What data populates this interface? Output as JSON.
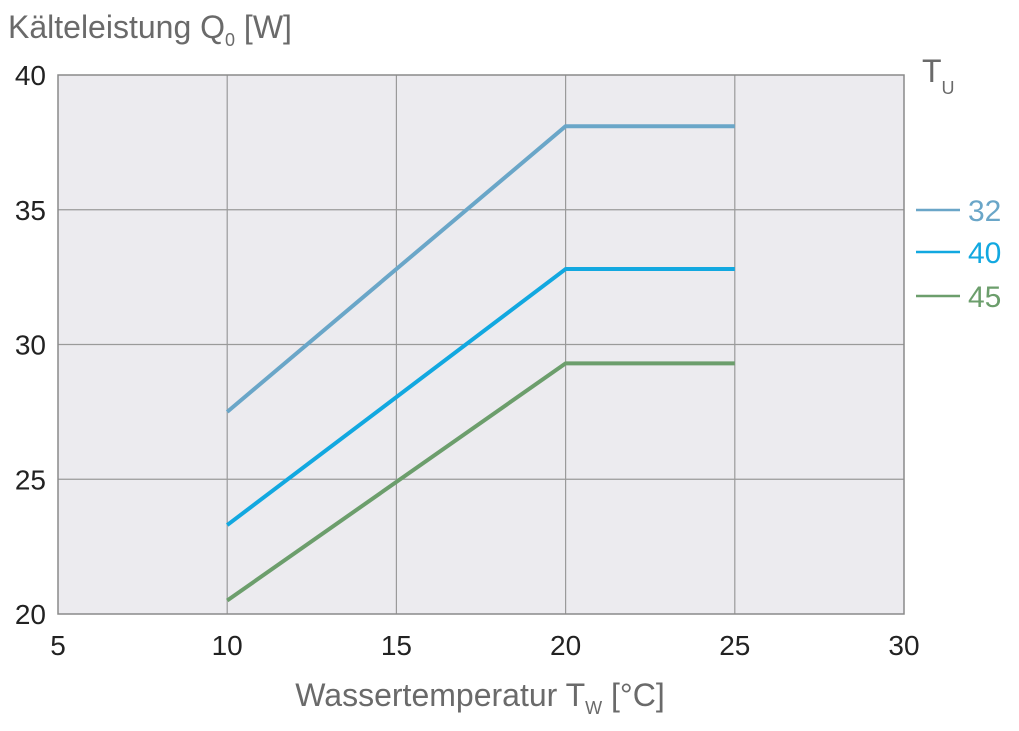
{
  "chart_data": {
    "type": "line",
    "ylabel": {
      "main": "Kälteleistung Q",
      "sub": "0",
      "unit": " [W]"
    },
    "xlabel": {
      "main": "Wassertemperatur T",
      "sub": "W",
      "unit": " [°C]"
    },
    "legend_title": {
      "main": "T",
      "sub": "U"
    },
    "legend_position": "right",
    "xlim": [
      5,
      30
    ],
    "ylim": [
      20,
      40
    ],
    "x_ticks": [
      "5",
      "10",
      "15",
      "20",
      "25",
      "30"
    ],
    "y_ticks": [
      "20",
      "25",
      "30",
      "35",
      "40"
    ],
    "grid": true,
    "series": [
      {
        "name": "32",
        "color": "#6aa6c8",
        "points": [
          [
            10,
            27.5
          ],
          [
            20,
            38.1
          ],
          [
            25,
            38.1
          ]
        ]
      },
      {
        "name": "40",
        "color": "#12a8e0",
        "points": [
          [
            10,
            23.3
          ],
          [
            20,
            32.8
          ],
          [
            25,
            32.8
          ]
        ]
      },
      {
        "name": "45",
        "color": "#6c9e6c",
        "points": [
          [
            10,
            20.5
          ],
          [
            20,
            29.3
          ],
          [
            25,
            29.3
          ]
        ]
      }
    ]
  }
}
